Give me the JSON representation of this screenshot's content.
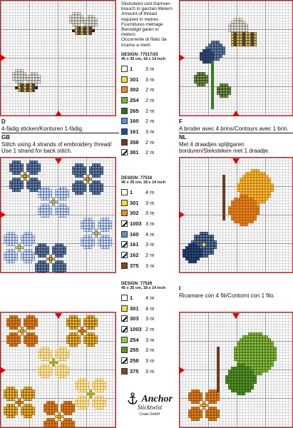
{
  "header_lines": [
    "Stickstwist und Garnver-",
    "brauch in ganzen Metern",
    "Amount of thread",
    "required in metres",
    "Fournitures métrage",
    "Benodigd garen in",
    "meters",
    "Occorrente di filato da",
    "ricamo a metri"
  ],
  "designs": [
    {
      "label": "DESIGN: 77517/25",
      "size": "45 x 35 cm, 18 x 14 inch",
      "rows": [
        {
          "num": "1",
          "amt": "3 m",
          "color": "#fffbe6",
          "back": false
        },
        {
          "num": "301",
          "amt": "3 m",
          "color": "#f6dc39",
          "back": false
        },
        {
          "num": "302",
          "amt": "2 m",
          "color": "#f08a1d",
          "back": false
        },
        {
          "num": "254",
          "amt": "2 m",
          "color": "#7fb13b",
          "back": false
        },
        {
          "num": "265",
          "amt": "2 m",
          "color": "#2f6d2d",
          "back": false
        },
        {
          "num": "160",
          "amt": "2 m",
          "color": "#5e8fd6",
          "back": false
        },
        {
          "num": "161",
          "amt": "3 m",
          "color": "#1b4d9e",
          "back": false
        },
        {
          "num": "358",
          "amt": "2 m",
          "color": "#6b3b22",
          "back": false
        },
        {
          "num": "381",
          "amt": "2 m",
          "color": "#ffffff",
          "back": true
        }
      ]
    },
    {
      "label": "DESIGN: 77516",
      "size": "45 x 35 cm, 18 x 14 inch",
      "rows": [
        {
          "num": "1",
          "amt": "4 m",
          "color": "#fffbe6",
          "back": false
        },
        {
          "num": "301",
          "amt": "3 m",
          "color": "#f6dc39",
          "back": false
        },
        {
          "num": "302",
          "amt": "3 m",
          "color": "#f08a1d",
          "back": false
        },
        {
          "num": "1003",
          "amt": "3 m",
          "color": "#ffffff",
          "back": true
        },
        {
          "num": "160",
          "amt": "4 m",
          "color": "#5e8fd6",
          "back": false
        },
        {
          "num": "161",
          "amt": "3 m",
          "color": "#ffffff",
          "back": true
        },
        {
          "num": "162",
          "amt": "2 m",
          "color": "#ffffff",
          "back": true
        },
        {
          "num": "375",
          "amt": "3 m",
          "color": "#7a4a2a",
          "back": false
        }
      ]
    },
    {
      "label": "DESIGN: 77526",
      "size": "45 x 35 cm, 18 x 14 inch",
      "rows": [
        {
          "num": "1",
          "amt": "4 m",
          "color": "#fffbe6",
          "back": false
        },
        {
          "num": "301",
          "amt": "4 m",
          "color": "#f6dc39",
          "back": false
        },
        {
          "num": "303",
          "amt": "3 m",
          "color": "#ffffff",
          "back": true
        },
        {
          "num": "1003",
          "amt": "2 m",
          "color": "#ffffff",
          "back": true
        },
        {
          "num": "254",
          "amt": "3 m",
          "color": "#9acb3c",
          "back": false
        },
        {
          "num": "255",
          "amt": "3 m",
          "color": "#5b9b2a",
          "back": false
        },
        {
          "num": "258",
          "amt": "3 m",
          "color": "#ffffff",
          "back": true
        },
        {
          "num": "375",
          "amt": "3 m",
          "color": "#7a4a2a",
          "back": false
        }
      ]
    }
  ],
  "captions": {
    "left": {
      "d": "D",
      "d_text": "4-fädig sticken/Konturen 1-fädig.",
      "gb": "GB",
      "gb_text1": "Stitch using 4 strands of embroidery thread/",
      "gb_text2": "Use 1 strand for back stitch."
    },
    "right": {
      "f": "F",
      "f_text": "A broder avec 4 brins/Contours avec 1 brin.",
      "nl": "NL",
      "nl_text1": "Met 4 draadjes splijtgaren",
      "nl_text2": "borduren/Steksteken met 1 draadje."
    },
    "italian": {
      "i": "I",
      "i_text": "Ricamare con 4 fili/Contorni con 1 filo."
    }
  },
  "brand": {
    "name": "Anchor",
    "line2": "Sticktwist",
    "line3": "Coats GmbH"
  },
  "icons": [
    "anchor-logo-icon",
    "registration-triangle-icon"
  ],
  "colors": {
    "frame": "#c62828",
    "marker": "#e00000"
  }
}
